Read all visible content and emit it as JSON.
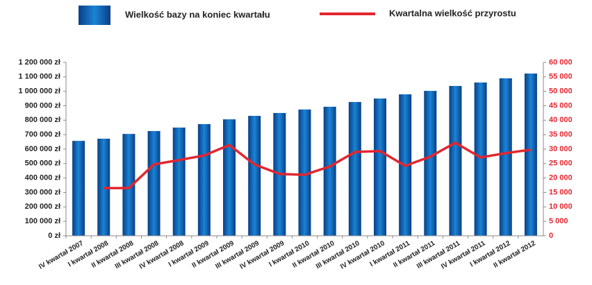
{
  "chart_data": {
    "type": "bar_line",
    "categories": [
      "IV kwartał 2007",
      "I kwartał 2008",
      "II kwartał 2008",
      "III kwartał 2008",
      "IV kwartał 2008",
      "I kwartał 2009",
      "II kwartał 2009",
      "III kwartał 2009",
      "IV kwartał 2009",
      "I kwartał 2010",
      "II kwartał 2010",
      "III kwartał 2010",
      "IV kwartał 2010",
      "I kwartał 2011",
      "II kwartał 2011",
      "III kwartał 2011",
      "IV kwartał 2011",
      "I kwartał 2012",
      "II kwartał 2012"
    ],
    "series": [
      {
        "name": "Wielkość bazy na koniec kwartału",
        "type": "bar",
        "color": "#1a84d6",
        "values": [
          657000,
          672000,
          705000,
          725000,
          749000,
          773000,
          806000,
          830000,
          850000,
          874000,
          893000,
          926000,
          950000,
          979000,
          1003000,
          1037000,
          1061000,
          1090000,
          1123000
        ]
      },
      {
        "name": "Kwartalna wielkość przyrostu",
        "type": "line",
        "axis": "y2",
        "color": "#e3262f",
        "values": [
          null,
          16500,
          16500,
          24700,
          26200,
          27800,
          31400,
          24700,
          21400,
          21100,
          24000,
          29000,
          29300,
          24200,
          27400,
          32200,
          27100,
          28600,
          29800
        ]
      }
    ],
    "ylim": [
      0,
      1200000
    ],
    "yticks": [
      {
        "value": 0,
        "label": "0 zł"
      },
      {
        "value": 100000,
        "label": "100 000 zł"
      },
      {
        "value": 200000,
        "label": "200 000 zł"
      },
      {
        "value": 300000,
        "label": "300 000 zł"
      },
      {
        "value": 400000,
        "label": "400 000 zł"
      },
      {
        "value": 500000,
        "label": "500 000 zł"
      },
      {
        "value": 600000,
        "label": "600 000 zł"
      },
      {
        "value": 700000,
        "label": "700 000 zł"
      },
      {
        "value": 800000,
        "label": "800 000 zł"
      },
      {
        "value": 900000,
        "label": "900 000 zł"
      },
      {
        "value": 1000000,
        "label": "1 000 000 zł"
      },
      {
        "value": 1100000,
        "label": "1 100 000 zł"
      },
      {
        "value": 1200000,
        "label": "1 200 000 zł"
      }
    ],
    "y2lim": [
      0,
      60000
    ],
    "y2ticks": [
      0,
      {
        "value": 5000,
        "label": "5 000"
      },
      {
        "value": 10000,
        "label": "10 000"
      },
      {
        "value": 15000,
        "label": "15 000"
      },
      {
        "value": 20000,
        "label": "20 000"
      },
      {
        "value": 25000,
        "label": "25 000"
      },
      {
        "value": 30000,
        "label": "30 000"
      },
      {
        "value": 35000,
        "label": "35 000"
      },
      {
        "value": 40000,
        "label": "40 000"
      },
      {
        "value": 45000,
        "label": "45 000"
      },
      {
        "value": 50000,
        "label": "50 000"
      },
      {
        "value": 55000,
        "label": "55 000"
      },
      {
        "value": 60000,
        "label": "60 000"
      }
    ],
    "legend": "top",
    "grid": false
  }
}
